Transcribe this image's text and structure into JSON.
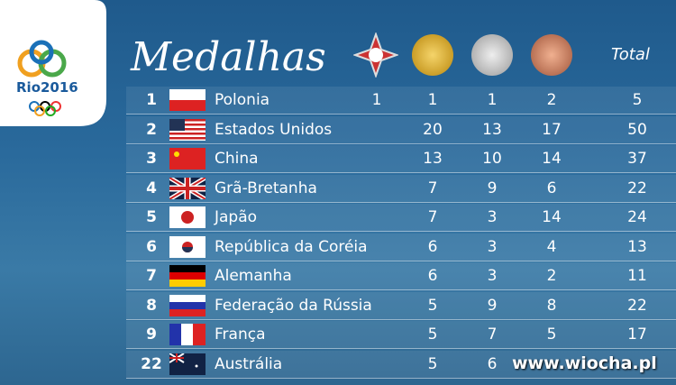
{
  "header": {
    "logo": "Rio2016",
    "title": "Medalhas",
    "total": "Total"
  },
  "table": {
    "rows": [
      {
        "rank": "1",
        "country": "Polonia",
        "special": "1",
        "gold": "1",
        "silver": "1",
        "bronze": "2",
        "total": "5"
      },
      {
        "rank": "2",
        "country": "Estados Unidos",
        "gold": "20",
        "silver": "13",
        "bronze": "17",
        "total": "50"
      },
      {
        "rank": "3",
        "country": "China",
        "gold": "13",
        "silver": "10",
        "bronze": "14",
        "total": "37"
      },
      {
        "rank": "4",
        "country": "Grã-Bretanha",
        "gold": "7",
        "silver": "9",
        "bronze": "6",
        "total": "22"
      },
      {
        "rank": "5",
        "country": "Japão",
        "gold": "7",
        "silver": "3",
        "bronze": "14",
        "total": "24"
      },
      {
        "rank": "6",
        "country": "República da Coréia",
        "gold": "6",
        "silver": "3",
        "bronze": "4",
        "total": "13"
      },
      {
        "rank": "7",
        "country": "Alemanha",
        "gold": "6",
        "silver": "3",
        "bronze": "2",
        "total": "11"
      },
      {
        "rank": "8",
        "country": "Federação da Rússia",
        "gold": "5",
        "silver": "9",
        "bronze": "8",
        "total": "22"
      },
      {
        "rank": "9",
        "country": "França",
        "gold": "5",
        "silver": "7",
        "bronze": "5",
        "total": "17"
      },
      {
        "rank": "22",
        "country": "Austrália",
        "gold": "5",
        "silver": "6"
      }
    ]
  },
  "watermark": "www.wiocha.pl"
}
